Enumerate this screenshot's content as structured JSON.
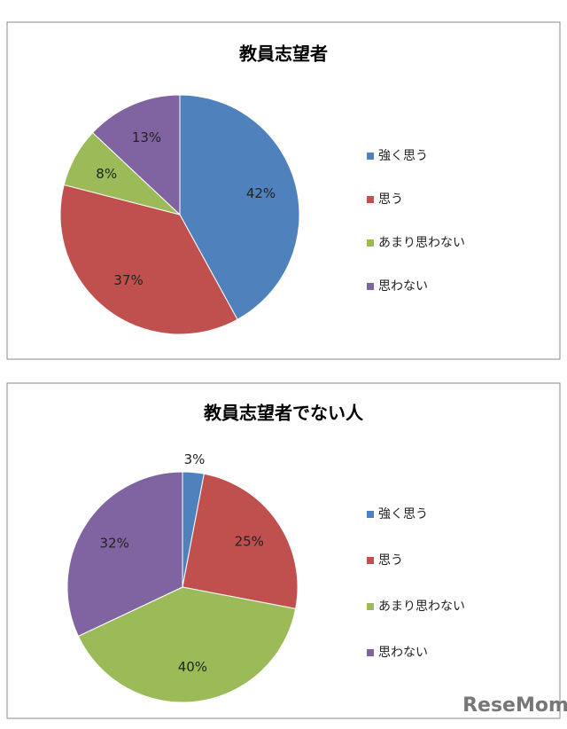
{
  "chart_data": [
    {
      "type": "pie",
      "title": "教員志望者",
      "categories": [
        "強く思う",
        "思う",
        "あまり思わない",
        "思わない"
      ],
      "values": [
        42,
        37,
        8,
        13
      ],
      "value_labels": [
        "42%",
        "37%",
        "8%",
        "13%"
      ],
      "colors": [
        "#4f81bd",
        "#c0504d",
        "#9bbb59",
        "#8064a2"
      ]
    },
    {
      "type": "pie",
      "title": "教員志望者でない人",
      "categories": [
        "強く思う",
        "思う",
        "あまり思わない",
        "思わない"
      ],
      "values": [
        3,
        25,
        40,
        32
      ],
      "value_labels": [
        "3%",
        "25%",
        "40%",
        "32%"
      ],
      "colors": [
        "#4f81bd",
        "#c0504d",
        "#9bbb59",
        "#8064a2"
      ]
    }
  ],
  "watermark": "ReseMom"
}
